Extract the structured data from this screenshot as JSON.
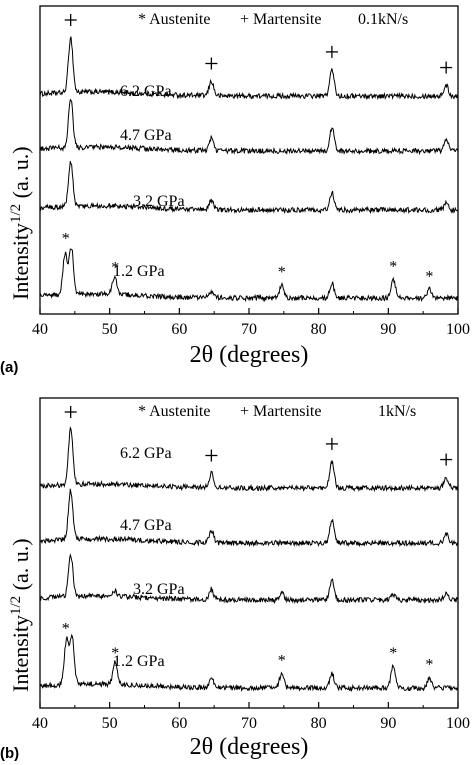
{
  "panels": [
    {
      "panel_label": "(a)",
      "legend_austenite": "* Austenite",
      "legend_martensite": "+ Martensite",
      "rate": "0.1kN/s",
      "xlabel": "2θ (degrees)",
      "ylabel_main": "Intensity",
      "ylabel_sup": "1/2",
      "ylabel_tail": " (a. u.)",
      "xticks": [
        "40",
        "50",
        "60",
        "70",
        "80",
        "90",
        "100"
      ],
      "traces": [
        {
          "label": "6.2 GPa",
          "peaks": [
            [
              44.4,
              0.95
            ],
            [
              64.6,
              0.25
            ],
            [
              81.9,
              0.45
            ],
            [
              98.3,
              0.18
            ]
          ]
        },
        {
          "label": "4.7 GPa",
          "peaks": [
            [
              44.4,
              0.85
            ],
            [
              64.6,
              0.22
            ],
            [
              81.9,
              0.4
            ],
            [
              98.3,
              0.18
            ]
          ]
        },
        {
          "label": "3.2 GPa",
          "peaks": [
            [
              44.4,
              0.75
            ],
            [
              64.6,
              0.15
            ],
            [
              81.9,
              0.3
            ],
            [
              98.3,
              0.12
            ]
          ]
        },
        {
          "label": "1.2 GPa",
          "peaks": [
            [
              43.6,
              0.7
            ],
            [
              44.5,
              0.8
            ],
            [
              50.7,
              0.3
            ],
            [
              64.6,
              0.12
            ],
            [
              74.7,
              0.22
            ],
            [
              81.9,
              0.25
            ],
            [
              90.7,
              0.32
            ],
            [
              95.9,
              0.15
            ]
          ]
        }
      ],
      "plus_markers": [
        44.4,
        64.6,
        81.9,
        98.3
      ],
      "star_markers": [
        [
          43.7,
          "1.2 GPa"
        ],
        [
          50.8,
          "1.2 GPa"
        ],
        [
          74.7,
          "1.2 GPa"
        ],
        [
          90.7,
          "1.2 GPa"
        ],
        [
          95.9,
          "1.2 GPa"
        ]
      ]
    },
    {
      "panel_label": "(b)",
      "legend_austenite": "* Austenite",
      "legend_martensite": "+ Martensite",
      "rate": "1kN/s",
      "xlabel": "2θ (degrees)",
      "ylabel_main": "Intensity",
      "ylabel_sup": "1/2",
      "ylabel_tail": " (a. u.)",
      "xticks": [
        "40",
        "50",
        "60",
        "70",
        "80",
        "90",
        "100"
      ],
      "traces": [
        {
          "label": "6.2 GPa",
          "peaks": [
            [
              44.4,
              0.95
            ],
            [
              64.6,
              0.25
            ],
            [
              81.9,
              0.45
            ],
            [
              98.3,
              0.18
            ]
          ]
        },
        {
          "label": "4.7 GPa",
          "peaks": [
            [
              44.4,
              0.85
            ],
            [
              64.6,
              0.22
            ],
            [
              81.9,
              0.4
            ],
            [
              98.3,
              0.15
            ]
          ]
        },
        {
          "label": "3.2 GPa",
          "peaks": [
            [
              44.4,
              0.72
            ],
            [
              50.7,
              0.1
            ],
            [
              64.6,
              0.18
            ],
            [
              74.7,
              0.12
            ],
            [
              81.9,
              0.35
            ],
            [
              90.7,
              0.1
            ],
            [
              98.3,
              0.12
            ]
          ]
        },
        {
          "label": "1.2 GPa",
          "peaks": [
            [
              43.8,
              0.75
            ],
            [
              44.6,
              0.8
            ],
            [
              50.8,
              0.38
            ],
            [
              64.6,
              0.15
            ],
            [
              74.7,
              0.25
            ],
            [
              81.9,
              0.25
            ],
            [
              90.7,
              0.38
            ],
            [
              95.9,
              0.18
            ]
          ]
        }
      ],
      "plus_markers": [
        44.4,
        64.6,
        81.9,
        98.3
      ],
      "star_markers": [
        [
          43.7,
          "1.2 GPa"
        ],
        [
          50.8,
          "1.2 GPa"
        ],
        [
          74.7,
          "1.2 GPa"
        ],
        [
          90.7,
          "1.2 GPa"
        ],
        [
          95.9,
          "1.2 GPa"
        ]
      ]
    }
  ],
  "chart_data": [
    {
      "type": "line",
      "title": "",
      "xlabel": "2θ (degrees)",
      "ylabel": "Intensity1/2 (a. u.)",
      "xlim": [
        40,
        100
      ],
      "x_ticks": [
        40,
        50,
        60,
        70,
        80,
        90,
        100
      ],
      "grid": false,
      "annotations": [
        "* Austenite",
        "+ Martensite",
        "0.1kN/s",
        "(a)"
      ],
      "series": [
        {
          "name": "6.2 GPa",
          "peak_positions": [
            44.4,
            64.6,
            81.9,
            98.3
          ]
        },
        {
          "name": "4.7 GPa",
          "peak_positions": [
            44.4,
            64.6,
            81.9,
            98.3
          ]
        },
        {
          "name": "3.2 GPa",
          "peak_positions": [
            44.4,
            64.6,
            81.9,
            98.3
          ]
        },
        {
          "name": "1.2 GPa",
          "peak_positions": [
            43.6,
            44.5,
            50.7,
            64.6,
            74.7,
            81.9,
            90.7,
            95.9
          ]
        }
      ]
    },
    {
      "type": "line",
      "title": "",
      "xlabel": "2θ (degrees)",
      "ylabel": "Intensity1/2 (a. u.)",
      "xlim": [
        40,
        100
      ],
      "x_ticks": [
        40,
        50,
        60,
        70,
        80,
        90,
        100
      ],
      "grid": false,
      "annotations": [
        "* Austenite",
        "+ Martensite",
        "1kN/s",
        "(b)"
      ],
      "series": [
        {
          "name": "6.2 GPa",
          "peak_positions": [
            44.4,
            64.6,
            81.9,
            98.3
          ]
        },
        {
          "name": "4.7 GPa",
          "peak_positions": [
            44.4,
            64.6,
            81.9,
            98.3
          ]
        },
        {
          "name": "3.2 GPa",
          "peak_positions": [
            44.4,
            50.7,
            64.6,
            74.7,
            81.9,
            90.7,
            98.3
          ]
        },
        {
          "name": "1.2 GPa",
          "peak_positions": [
            43.8,
            44.6,
            50.8,
            64.6,
            74.7,
            81.9,
            90.7,
            95.9
          ]
        }
      ]
    }
  ]
}
